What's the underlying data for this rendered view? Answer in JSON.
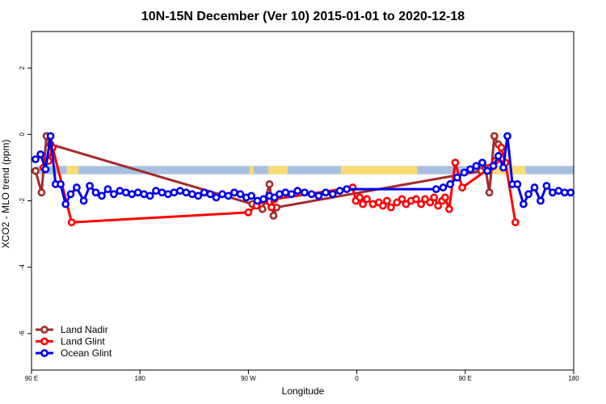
{
  "chart_data": {
    "type": "line",
    "title": "10N-15N December (Ver 10)   2015-01-01 to 2020-12-18",
    "xlabel": "Longitude",
    "ylabel": "XCO2 - MLO trend (ppm)",
    "xlim": [
      0,
      27
    ],
    "ylim": [
      -7.1,
      3.1
    ],
    "x_ticks": [
      {
        "value": 0,
        "label": "90 E"
      },
      {
        "value": 5.4,
        "label": "180"
      },
      {
        "value": 10.8,
        "label": "90 W"
      },
      {
        "value": 16.2,
        "label": "0"
      },
      {
        "value": 21.6,
        "label": "90 E"
      },
      {
        "value": 27,
        "label": "180"
      }
    ],
    "y_ticks": [
      2,
      0,
      -2,
      -4,
      -6
    ],
    "grid": false,
    "legend_position": "bottom-left",
    "background_band": {
      "y_range": [
        -1.2,
        -0.95
      ],
      "ocean_color": "#a8c0e0",
      "land_color": "#f9dc74",
      "land_x_ranges": [
        [
          1.75,
          2.35
        ],
        [
          10.85,
          11.05
        ],
        [
          11.8,
          12.75
        ],
        [
          15.4,
          19.2
        ],
        [
          22.5,
          24.6
        ]
      ]
    },
    "series": [
      {
        "name": "Land Nadir",
        "color": "#a52a2a",
        "x": [
          0.2,
          0.5,
          0.75,
          0.95,
          11.0,
          11.5,
          11.85,
          12.05,
          12.2,
          22.4,
          22.6,
          22.8,
          23.05,
          23.25
        ],
        "y": [
          -1.1,
          -1.75,
          -0.05,
          -0.3,
          -2.1,
          -2.25,
          -1.5,
          -2.45,
          -2.2,
          -1.1,
          -1.0,
          -1.75,
          -0.05,
          -0.3
        ]
      },
      {
        "name": "Land Glint",
        "color": "#ff0000",
        "x": [
          0.6,
          0.85,
          1.05,
          2.0,
          10.8,
          11.2,
          11.6,
          11.95,
          12.1,
          16.0,
          16.15,
          16.35,
          16.5,
          16.7,
          17.0,
          17.3,
          17.5,
          17.7,
          17.9,
          18.2,
          18.45,
          18.65,
          18.9,
          19.15,
          19.4,
          19.6,
          19.85,
          20.05,
          20.25,
          20.45,
          20.6,
          20.8,
          21.1,
          21.45,
          22.85,
          23.1,
          23.4,
          23.6,
          24.1
        ],
        "y": [
          -1.0,
          -0.8,
          -0.4,
          -2.65,
          -2.35,
          -2.15,
          -2.0,
          -2.2,
          -1.95,
          -1.6,
          -2.0,
          -1.9,
          -2.1,
          -1.95,
          -2.1,
          -2.05,
          -2.15,
          -2.0,
          -2.2,
          -2.05,
          -1.95,
          -2.1,
          -2.0,
          -1.95,
          -2.1,
          -1.95,
          -2.05,
          -1.9,
          -2.15,
          -2.0,
          -1.9,
          -2.25,
          -0.85,
          -1.6,
          -1.0,
          -0.8,
          -0.4,
          -0.85,
          -2.65
        ]
      },
      {
        "name": "Ocean Glint",
        "color": "#0000ee",
        "x": [
          0.2,
          0.45,
          0.7,
          0.95,
          1.2,
          1.45,
          1.7,
          1.95,
          2.25,
          2.6,
          2.9,
          3.2,
          3.5,
          3.8,
          4.1,
          4.4,
          4.7,
          5.0,
          5.3,
          5.6,
          5.9,
          6.2,
          6.5,
          6.8,
          7.1,
          7.4,
          7.7,
          8.0,
          8.3,
          8.6,
          8.9,
          9.2,
          9.5,
          9.8,
          10.1,
          10.4,
          10.7,
          10.95,
          11.25,
          11.55,
          11.85,
          12.1,
          12.35,
          12.65,
          12.95,
          13.25,
          13.6,
          13.95,
          14.3,
          14.65,
          15.0,
          15.35,
          15.7,
          20.15,
          20.5,
          20.85,
          21.2,
          21.55,
          21.85,
          22.15,
          22.45,
          22.7,
          23.0,
          23.25,
          23.5,
          23.7,
          23.95,
          24.2,
          24.5,
          24.75,
          25.05,
          25.35,
          25.65,
          25.95,
          26.25,
          26.55,
          26.85
        ],
        "y": [
          -0.75,
          -0.6,
          -1.05,
          -0.05,
          -1.5,
          -1.5,
          -2.1,
          -1.8,
          -1.6,
          -2.0,
          -1.55,
          -1.75,
          -1.85,
          -1.65,
          -1.8,
          -1.7,
          -1.75,
          -1.8,
          -1.75,
          -1.8,
          -1.85,
          -1.7,
          -1.75,
          -1.8,
          -1.75,
          -1.7,
          -1.75,
          -1.8,
          -1.85,
          -1.75,
          -1.8,
          -1.9,
          -1.8,
          -1.85,
          -1.75,
          -1.8,
          -1.9,
          -1.85,
          -2.0,
          -1.95,
          -1.85,
          -1.9,
          -1.8,
          -1.75,
          -1.8,
          -1.7,
          -1.75,
          -1.8,
          -1.85,
          -1.75,
          -1.8,
          -1.7,
          -1.65,
          -1.65,
          -1.6,
          -1.5,
          -1.3,
          -1.15,
          -1.05,
          -0.95,
          -0.85,
          -1.1,
          -0.95,
          -0.65,
          -1.0,
          -0.05,
          -1.5,
          -1.5,
          -2.1,
          -1.8,
          -1.6,
          -2.0,
          -1.55,
          -1.75,
          -1.7,
          -1.75,
          -1.75
        ]
      }
    ]
  }
}
